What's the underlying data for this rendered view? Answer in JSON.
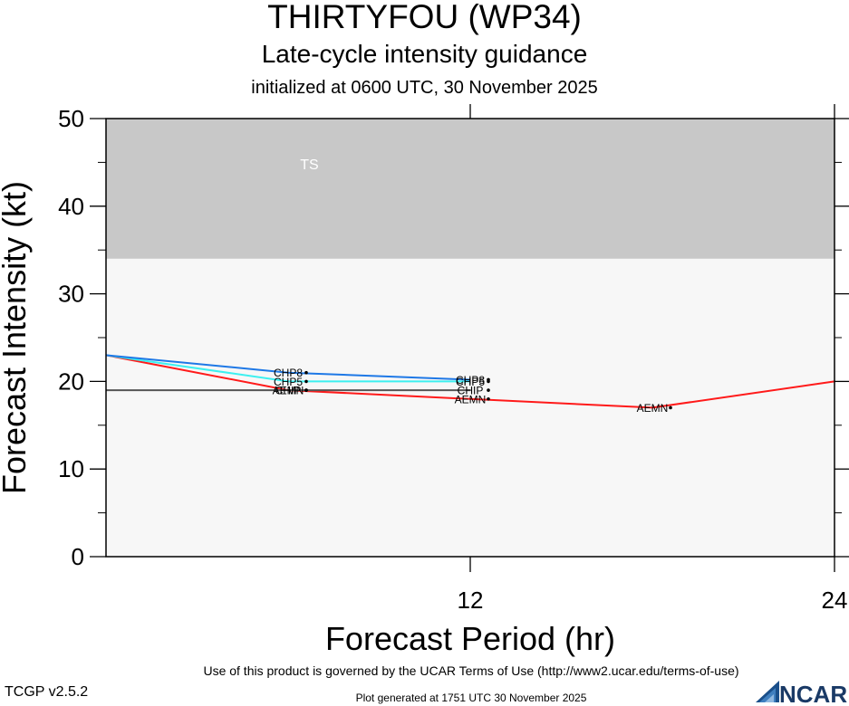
{
  "header": {
    "title": "THIRTYFOU (WP34)",
    "subtitle": "Late-cycle intensity guidance",
    "init": "initialized at 0600 UTC, 30 November 2025"
  },
  "footer": {
    "terms": "Use of this product is governed by the UCAR Terms of Use (http://www2.ucar.edu/terms-of-use)",
    "version": "TCGP v2.5.2",
    "generated": "Plot generated at 1751 UTC   30 November 2025",
    "logo_text": "NCAR"
  },
  "chart_data": {
    "type": "line",
    "title": "THIRTYFOU (WP34)",
    "subtitle": "Late-cycle intensity guidance",
    "xlabel": "Forecast Period (hr)",
    "ylabel": "Forecast Intensity (kt)",
    "xlim": [
      0,
      24
    ],
    "ylim": [
      0,
      50
    ],
    "xticks": [
      12,
      24
    ],
    "yticks": [
      0,
      10,
      20,
      30,
      40,
      50
    ],
    "grid": false,
    "bands": [
      {
        "label": "TS",
        "y0": 34,
        "y1": 50,
        "color": "#c8c8c8"
      },
      {
        "label": "",
        "y0": 0,
        "y1": 34,
        "color": "#f7f7f7"
      }
    ],
    "series": [
      {
        "name": "AEMN",
        "color": "#ff1a1a",
        "x": [
          0,
          6,
          12,
          18,
          24
        ],
        "y": [
          23,
          19,
          18,
          17,
          20
        ]
      },
      {
        "name": "CHIP",
        "color": "#555555",
        "x": [
          0,
          6,
          12
        ],
        "y": [
          19,
          19,
          19
        ]
      },
      {
        "name": "CHP5",
        "color": "#3cf0f0",
        "x": [
          0,
          6,
          12
        ],
        "y": [
          23,
          20,
          20
        ]
      },
      {
        "name": "CHP8",
        "color": "#1e78e6",
        "x": [
          0,
          6,
          12
        ],
        "y": [
          23,
          21,
          20.2
        ]
      }
    ]
  }
}
